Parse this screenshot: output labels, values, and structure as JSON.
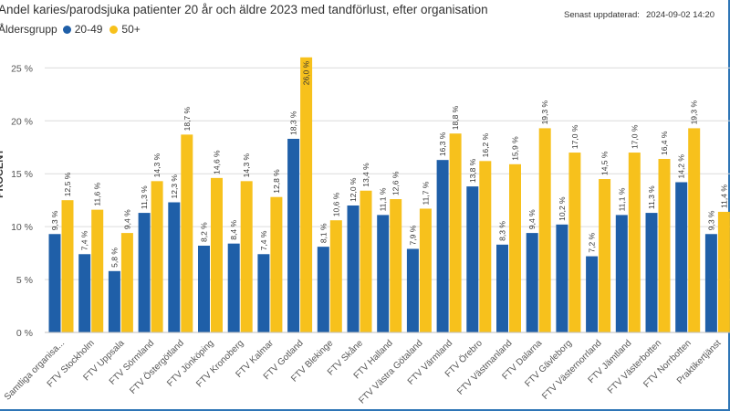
{
  "header": {
    "title": "Andel karies/parodsjuka patienter 20 år och äldre 2023 med tandförlust, efter organisation",
    "updated_label": "Senast uppdaterad:",
    "updated_value": "2024-09-02 14:20"
  },
  "legend": {
    "title": "Åldersgrupp",
    "items": [
      {
        "label": "20-49",
        "color": "#1f5fa8"
      },
      {
        "label": "50+",
        "color": "#f7c11c"
      }
    ]
  },
  "chart_data": {
    "type": "bar",
    "title": "Andel karies/parodsjuka patienter 20 år och äldre 2023 med tandförlust, efter organisation",
    "ylabel": "PROCENT",
    "ylim": [
      0,
      26.5
    ],
    "yticks": [
      "0 %",
      "5 %",
      "10 %",
      "15 %",
      "20 %",
      "25 %"
    ],
    "ytick_values": [
      0,
      5,
      10,
      15,
      20,
      25
    ],
    "grid": true,
    "legend_position": "top-left",
    "categories": [
      "Samtliga organisa...",
      "FTV Stockholm",
      "FTV Uppsala",
      "FTV Sörmland",
      "FTV Östergötland",
      "FTV Jönköping",
      "FTV Kronoberg",
      "FTV Kalmar",
      "FTV Gotland",
      "FTV Blekinge",
      "FTV Skåne",
      "FTV Halland",
      "FTV Västra Götaland",
      "FTV Värmland",
      "FTV Örebro",
      "FTV Västmanland",
      "FTV Dalarna",
      "FTV Gävleborg",
      "FTV Västernorrland",
      "FTV Jämtland",
      "FTV Västerbotten",
      "FTV Norrbotten",
      "Praktikertjänst"
    ],
    "series": [
      {
        "name": "20-49",
        "color": "#1f5fa8",
        "values": [
          9.3,
          7.4,
          5.8,
          11.3,
          12.3,
          8.2,
          8.4,
          7.4,
          18.3,
          8.1,
          12.0,
          11.1,
          7.9,
          16.3,
          13.8,
          8.3,
          9.4,
          10.2,
          7.2,
          11.1,
          11.3,
          14.2,
          9.3
        ],
        "labels": [
          "9,3 %",
          "7,4 %",
          "5,8 %",
          "11,3 %",
          "12,3 %",
          "8,2 %",
          "8,4 %",
          "7,4 %",
          "18,3 %",
          "8,1 %",
          "12,0 %",
          "11,1 %",
          "7,9 %",
          "16,3 %",
          "13,8 %",
          "8,3 %",
          "9,4 %",
          "10,2 %",
          "7,2 %",
          "11,1 %",
          "11,3 %",
          "14,2 %",
          "9,3 %"
        ]
      },
      {
        "name": "50+",
        "color": "#f7c11c",
        "values": [
          12.5,
          11.6,
          9.4,
          14.3,
          18.7,
          14.6,
          14.3,
          12.8,
          26.0,
          10.6,
          13.4,
          12.6,
          11.7,
          18.8,
          16.2,
          15.9,
          19.3,
          17.0,
          14.5,
          17.0,
          16.4,
          19.3,
          11.4
        ],
        "labels": [
          "12,5 %",
          "11,6 %",
          "9,4 %",
          "14,3 %",
          "18,7 %",
          "14,6 %",
          "14,3 %",
          "12,8 %",
          "26,0 %",
          "10,6 %",
          "13,4 %",
          "12,6 %",
          "11,7 %",
          "18,8 %",
          "16,2 %",
          "15,9 %",
          "19,3 %",
          "17,0 %",
          "14,5 %",
          "17,0 %",
          "16,4 %",
          "19,3 %",
          "11,4 %"
        ]
      }
    ]
  }
}
